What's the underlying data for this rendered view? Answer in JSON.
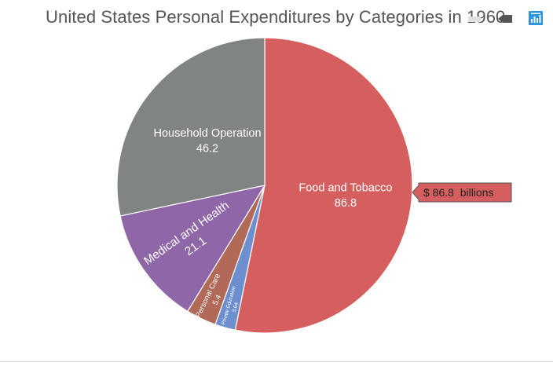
{
  "title": "United States Personal Expenditures by Categories in 1960",
  "colors": {
    "food_and_tobacco": "#d55f5f",
    "household_operation": "#808584",
    "medical_and_health": "#8f67a8",
    "personal_care": "#b16a58",
    "private_education": "#6d8fd0"
  },
  "chart_data": {
    "type": "pie",
    "title": "United States Personal Expenditures by Categories in 1960",
    "unit": "billions",
    "slices": [
      {
        "label": "Food and Tobacco",
        "value": 86.8,
        "value_text": "86.8",
        "color": "#d55f5f"
      },
      {
        "label": "Private Education",
        "value": 3.64,
        "value_text": "3.64",
        "color": "#6d8fd0"
      },
      {
        "label": "Personal Care",
        "value": 5.4,
        "value_text": "5.4",
        "color": "#b16a58"
      },
      {
        "label": "Medical and Health",
        "value": 21.1,
        "value_text": "21.1",
        "color": "#8f67a8"
      },
      {
        "label": "Household Operation",
        "value": 46.2,
        "value_text": "46.2",
        "color": "#808584"
      }
    ],
    "tooltip": {
      "slice": "Food and Tobacco",
      "text": "$ 86.8  billions"
    }
  }
}
